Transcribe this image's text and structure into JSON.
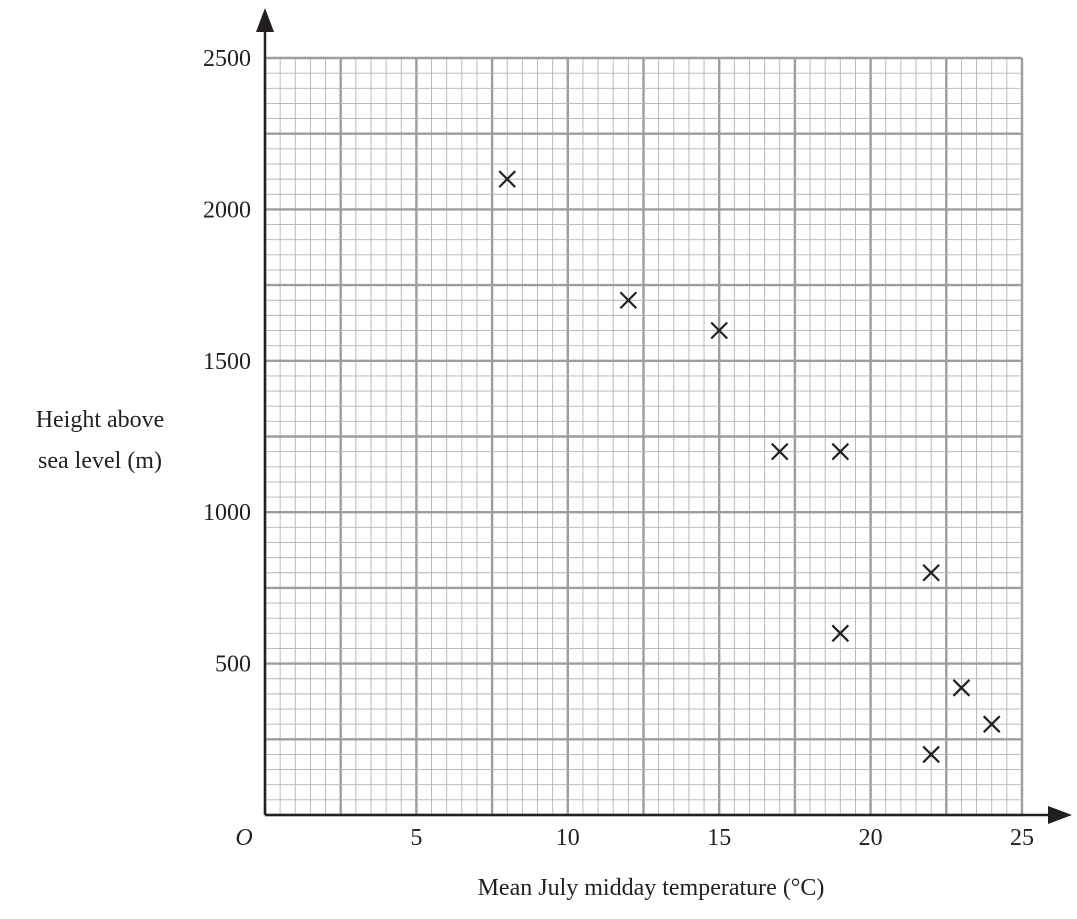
{
  "chart_data": {
    "type": "scatter",
    "title": "",
    "xlabel": "Mean July midday temperature (°C)",
    "ylabel_lines": [
      "Height above",
      "sea level (m)"
    ],
    "origin_label": "O",
    "xlim": [
      0,
      25
    ],
    "ylim": [
      0,
      2500
    ],
    "x_ticks": [
      5,
      10,
      15,
      20,
      25
    ],
    "x_tick_labels": [
      "5",
      "10",
      "15",
      "20",
      "25"
    ],
    "y_ticks": [
      500,
      1000,
      1500,
      2000,
      2500
    ],
    "y_tick_labels": [
      "500",
      "1000",
      "1500",
      "2000",
      "2500"
    ],
    "grid": true,
    "marker": "×",
    "series": [
      {
        "points": [
          {
            "x": 8,
            "y": 2100
          },
          {
            "x": 12,
            "y": 1700
          },
          {
            "x": 15,
            "y": 1600
          },
          {
            "x": 17,
            "y": 1200
          },
          {
            "x": 19,
            "y": 1200
          },
          {
            "x": 22,
            "y": 800
          },
          {
            "x": 19,
            "y": 600
          },
          {
            "x": 23,
            "y": 420
          },
          {
            "x": 24,
            "y": 300
          },
          {
            "x": 22,
            "y": 200
          }
        ]
      }
    ]
  }
}
